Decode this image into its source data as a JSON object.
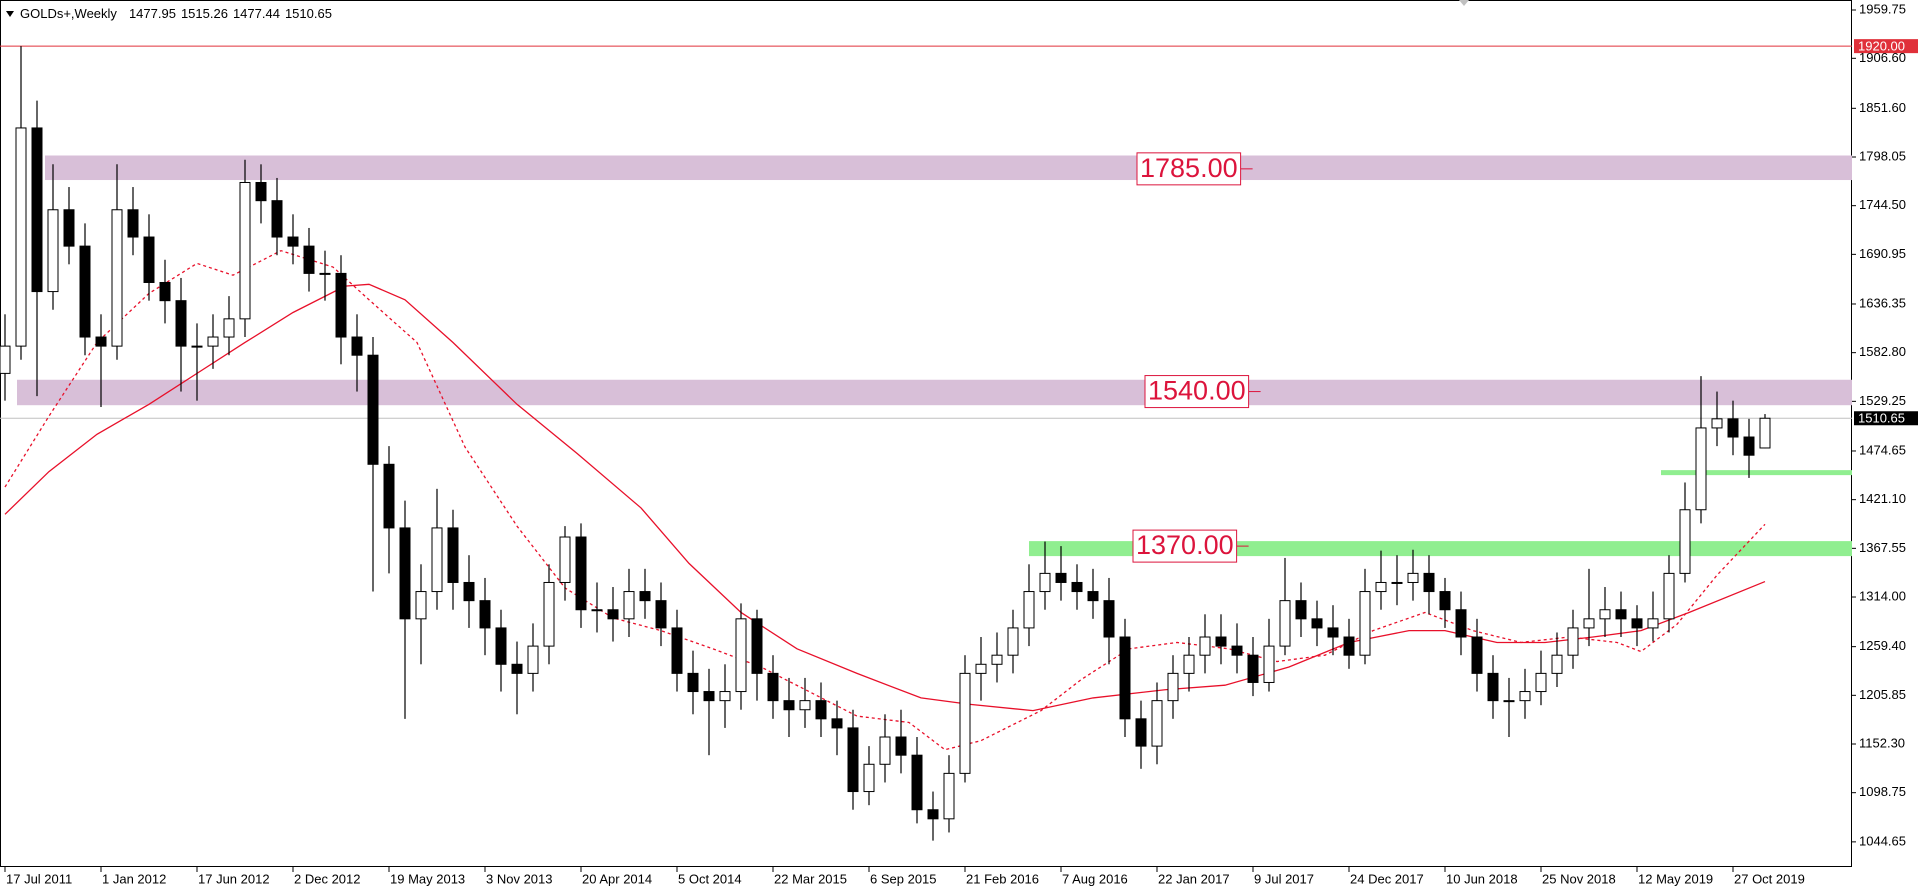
{
  "chart_data": {
    "type": "candlestick",
    "symbol": "GOLDs+,Weekly",
    "x": [
      0,
      4,
      8,
      12,
      16,
      20,
      24,
      28,
      32,
      36,
      40,
      44,
      48,
      52,
      56,
      60,
      64,
      68,
      72,
      76,
      80,
      84,
      88,
      92,
      96,
      100,
      104,
      108,
      112,
      116,
      120,
      124,
      128,
      132,
      136,
      140,
      144,
      148,
      152,
      156,
      160,
      164,
      168,
      172,
      176,
      180,
      184,
      188,
      192,
      196,
      200,
      204,
      208,
      212,
      216,
      220,
      224,
      228,
      232,
      236,
      240,
      244,
      248,
      252,
      256,
      260,
      264,
      268,
      272,
      276,
      280,
      284,
      288,
      292,
      296,
      300,
      304,
      308,
      312,
      316,
      320,
      324,
      328,
      332,
      336,
      340,
      344,
      348,
      352,
      356,
      360,
      364,
      368,
      372,
      376,
      380,
      384,
      388,
      392,
      396,
      400,
      404,
      408,
      412,
      416,
      420,
      424,
      428,
      432,
      436,
      440
    ],
    "open": [
      1560,
      1590,
      1830,
      1650,
      1740,
      1700,
      1600,
      1590,
      1740,
      1710,
      1660,
      1640,
      1590,
      1590,
      1600,
      1620,
      1770,
      1750,
      1710,
      1700,
      1670,
      1670,
      1600,
      1580,
      1460,
      1390,
      1290,
      1320,
      1390,
      1330,
      1310,
      1280,
      1240,
      1230,
      1260,
      1330,
      1380,
      1300,
      1300,
      1290,
      1320,
      1310,
      1280,
      1230,
      1210,
      1200,
      1210,
      1290,
      1230,
      1200,
      1190,
      1200,
      1180,
      1170,
      1100,
      1130,
      1160,
      1140,
      1080,
      1070,
      1120,
      1230,
      1240,
      1250,
      1280,
      1320,
      1340,
      1330,
      1320,
      1310,
      1270,
      1180,
      1150,
      1200,
      1230,
      1250,
      1270,
      1260,
      1250,
      1220,
      1260,
      1310,
      1290,
      1280,
      1270,
      1250,
      1320,
      1330,
      1330,
      1340,
      1320,
      1300,
      1270,
      1230,
      1200,
      1200,
      1210,
      1230,
      1250,
      1280,
      1290,
      1300,
      1290,
      1280,
      1290,
      1340,
      1410,
      1500,
      1510,
      1490,
      1477.95
    ],
    "high": [
      1625,
      1920,
      1860,
      1790,
      1765,
      1725,
      1625,
      1790,
      1765,
      1735,
      1685,
      1665,
      1615,
      1625,
      1645,
      1795,
      1790,
      1775,
      1735,
      1720,
      1695,
      1690,
      1625,
      1600,
      1480,
      1420,
      1350,
      1433,
      1410,
      1360,
      1335,
      1300,
      1265,
      1285,
      1350,
      1392,
      1395,
      1330,
      1325,
      1345,
      1345,
      1330,
      1300,
      1255,
      1235,
      1240,
      1307,
      1300,
      1250,
      1225,
      1225,
      1220,
      1200,
      1190,
      1150,
      1185,
      1190,
      1160,
      1100,
      1140,
      1250,
      1270,
      1275,
      1300,
      1350,
      1375,
      1370,
      1350,
      1345,
      1335,
      1290,
      1200,
      1220,
      1250,
      1270,
      1295,
      1295,
      1285,
      1270,
      1290,
      1357,
      1330,
      1310,
      1305,
      1290,
      1345,
      1365,
      1360,
      1366,
      1360,
      1335,
      1320,
      1290,
      1250,
      1225,
      1235,
      1255,
      1275,
      1300,
      1345,
      1325,
      1320,
      1305,
      1320,
      1360,
      1440,
      1557,
      1540,
      1530,
      1510,
      1515.26
    ],
    "low": [
      1530,
      1575,
      1535,
      1630,
      1680,
      1580,
      1523,
      1575,
      1690,
      1640,
      1615,
      1540,
      1530,
      1565,
      1580,
      1600,
      1725,
      1690,
      1680,
      1650,
      1640,
      1570,
      1540,
      1320,
      1340,
      1180,
      1240,
      1300,
      1300,
      1280,
      1250,
      1210,
      1185,
      1210,
      1240,
      1310,
      1280,
      1275,
      1265,
      1270,
      1290,
      1260,
      1210,
      1185,
      1140,
      1170,
      1190,
      1200,
      1180,
      1160,
      1170,
      1160,
      1140,
      1080,
      1085,
      1110,
      1120,
      1065,
      1046,
      1055,
      1110,
      1200,
      1220,
      1230,
      1260,
      1300,
      1310,
      1300,
      1290,
      1240,
      1160,
      1125,
      1130,
      1180,
      1210,
      1230,
      1240,
      1230,
      1205,
      1210,
      1250,
      1270,
      1260,
      1250,
      1235,
      1240,
      1300,
      1305,
      1310,
      1295,
      1280,
      1250,
      1210,
      1180,
      1160,
      1180,
      1195,
      1215,
      1235,
      1260,
      1270,
      1270,
      1260,
      1265,
      1275,
      1330,
      1395,
      1480,
      1470,
      1445,
      1477.44
    ],
    "close": [
      1590,
      1830,
      1650,
      1740,
      1700,
      1600,
      1590,
      1740,
      1710,
      1660,
      1640,
      1590,
      1590,
      1600,
      1620,
      1770,
      1750,
      1710,
      1700,
      1670,
      1670,
      1600,
      1580,
      1460,
      1390,
      1290,
      1320,
      1390,
      1330,
      1310,
      1280,
      1240,
      1230,
      1260,
      1330,
      1380,
      1300,
      1300,
      1290,
      1320,
      1310,
      1280,
      1230,
      1210,
      1200,
      1210,
      1290,
      1230,
      1200,
      1190,
      1200,
      1180,
      1170,
      1100,
      1130,
      1160,
      1140,
      1080,
      1070,
      1120,
      1230,
      1240,
      1250,
      1280,
      1320,
      1340,
      1330,
      1320,
      1310,
      1270,
      1180,
      1150,
      1200,
      1230,
      1250,
      1270,
      1260,
      1250,
      1220,
      1260,
      1310,
      1290,
      1280,
      1270,
      1250,
      1320,
      1330,
      1330,
      1340,
      1320,
      1300,
      1270,
      1230,
      1200,
      1200,
      1210,
      1230,
      1250,
      1280,
      1290,
      1300,
      1290,
      1280,
      1290,
      1340,
      1410,
      1500,
      1510,
      1490,
      1470,
      1510.65
    ],
    "up_color": "#ffffff",
    "down_color": "#000000",
    "outline_color": "#000000",
    "xlim": [
      -1.25,
      461.75
    ],
    "xticks": [
      {
        "value": 0,
        "label": "17 Jul 2011"
      },
      {
        "value": 24,
        "label": "1 Jan 2012"
      },
      {
        "value": 48,
        "label": "17 Jun 2012"
      },
      {
        "value": 72,
        "label": "2 Dec 2012"
      },
      {
        "value": 96,
        "label": "19 May 2013"
      },
      {
        "value": 120,
        "label": "3 Nov 2013"
      },
      {
        "value": 144,
        "label": "20 Apr 2014"
      },
      {
        "value": 168,
        "label": "5 Oct 2014"
      },
      {
        "value": 192,
        "label": "22 Mar 2015"
      },
      {
        "value": 216,
        "label": "6 Sep 2015"
      },
      {
        "value": 240,
        "label": "21 Feb 2016"
      },
      {
        "value": 264,
        "label": "7 Aug 2016"
      },
      {
        "value": 288,
        "label": "22 Jan 2017"
      },
      {
        "value": 312,
        "label": "9 Jul 2017"
      },
      {
        "value": 336,
        "label": "24 Dec 2017"
      },
      {
        "value": 360,
        "label": "10 Jun 2018"
      },
      {
        "value": 384,
        "label": "25 Nov 2018"
      },
      {
        "value": 408,
        "label": "12 May 2019"
      },
      {
        "value": 432,
        "label": "27 Oct 2019"
      }
    ],
    "ylim": [
      1017,
      1970.75
    ],
    "yticks": [
      1959.75,
      {
        "value": 1906.6,
        "label": "1906.60"
      },
      {
        "value": 1851.6,
        "label": "1851.60"
      },
      1798.05,
      {
        "value": 1744.5,
        "label": "1744.50"
      },
      1690.95,
      1636.35,
      {
        "value": 1582.8,
        "label": "1582.80"
      },
      1529.25,
      1474.65,
      {
        "value": 1421.1,
        "label": "1421.10"
      },
      1367.55,
      {
        "value": 1314,
        "label": "1314.00"
      },
      {
        "value": 1259.4,
        "label": "1259.40"
      },
      1205.85,
      {
        "value": 1152.3,
        "label": "1152.30"
      },
      1098.75,
      1044.65
    ],
    "moving_averages": [
      {
        "style": "solid",
        "color": "#e8102a",
        "x": [
          0,
          11,
          23,
          36,
          48,
          60,
          72,
          85,
          91,
          100,
          112,
          128,
          143,
          159,
          171,
          184,
          198,
          213,
          229,
          241,
          257,
          272,
          290,
          305,
          321,
          336,
          351,
          360,
          373,
          385,
          397,
          409,
          421,
          440
        ],
        "values": [
          1405,
          1452,
          1493,
          1526,
          1560,
          1594,
          1627,
          1656,
          1658,
          1641,
          1594,
          1526,
          1472,
          1412,
          1351,
          1297,
          1257,
          1230,
          1203,
          1196,
          1189,
          1203,
          1212,
          1217,
          1237,
          1264,
          1277,
          1277,
          1264,
          1264,
          1270,
          1277,
          1297,
          1331
        ]
      },
      {
        "style": "dotted",
        "color": "#e8102a",
        "x": [
          0,
          11,
          23,
          36,
          48,
          57,
          69,
          82,
          91,
          103,
          115,
          128,
          140,
          152,
          164,
          177,
          189,
          201,
          213,
          226,
          235,
          244,
          259,
          269,
          281,
          293,
          306,
          318,
          330,
          342,
          355,
          367,
          379,
          391,
          403,
          409,
          418,
          428,
          440
        ],
        "values": [
          1435,
          1513,
          1594,
          1648,
          1681,
          1668,
          1695,
          1677,
          1641,
          1594,
          1479,
          1392,
          1324,
          1291,
          1277,
          1257,
          1237,
          1210,
          1183,
          1176,
          1146,
          1156,
          1189,
          1223,
          1257,
          1264,
          1257,
          1243,
          1250,
          1277,
          1297,
          1277,
          1264,
          1270,
          1264,
          1254,
          1284,
          1338,
          1394
        ]
      }
    ],
    "zones": [
      {
        "from": 1772.7,
        "to": 1799.7,
        "start": 10,
        "color": "#d8bfd8",
        "label": {
          "value": 1785,
          "label": "1785.00"
        },
        "label_x": 283
      },
      {
        "from": 1525,
        "to": 1553,
        "start": 3,
        "color": "#d8bfd8",
        "label": {
          "value": 1540,
          "label": "1540.00"
        },
        "label_x": 285
      },
      {
        "from": 1359,
        "to": 1375.5,
        "start": 256,
        "color": "#90ee90",
        "label": {
          "value": 1370,
          "label": "1370.00"
        },
        "label_x": 282
      }
    ],
    "support_lines": [
      {
        "value": 1450.8,
        "start": 414,
        "color": "#90ee90"
      }
    ],
    "levels": [
      {
        "value": 1920,
        "label": "1920.00",
        "color": "#e0303a"
      }
    ],
    "last_price_color": "#c0c0c0"
  }
}
